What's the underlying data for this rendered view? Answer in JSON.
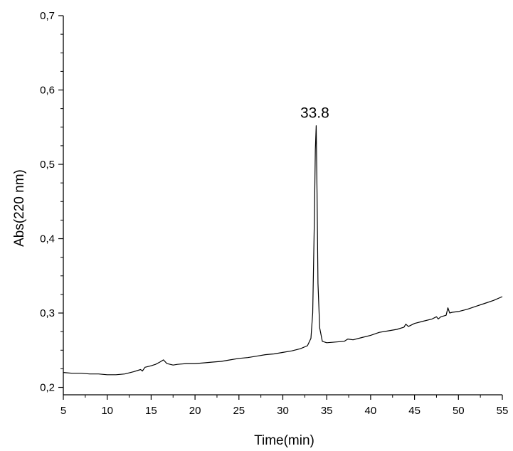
{
  "chart_data": {
    "type": "line",
    "xlabel": "Time(min)",
    "ylabel": "Abs(220 nm)",
    "xlim": [
      5,
      55
    ],
    "ylim": [
      0.19,
      0.7
    ],
    "x_ticks": [
      5,
      10,
      15,
      20,
      25,
      30,
      35,
      40,
      45,
      50,
      55
    ],
    "x_tick_labels": [
      "5",
      "10",
      "15",
      "20",
      "25",
      "30",
      "35",
      "40",
      "45",
      "50",
      "55"
    ],
    "y_ticks": [
      0.2,
      0.3,
      0.4,
      0.5,
      0.6,
      0.7
    ],
    "y_tick_labels": [
      "0,2",
      "0,3",
      "0,4",
      "0,5",
      "0,6",
      "0,7"
    ],
    "grid": false,
    "annotations": [
      {
        "text": "33.8",
        "x": 33.8,
        "y": 0.552
      }
    ],
    "series": [
      {
        "x": [
          5,
          6,
          7,
          8,
          9,
          10,
          11,
          12,
          13,
          13.8,
          14.0,
          14.3,
          15,
          15.5,
          16.0,
          16.4,
          16.8,
          17.5,
          18,
          19,
          20,
          21,
          22,
          23,
          24,
          25,
          26,
          27,
          28,
          29,
          30,
          31,
          32,
          32.8,
          33.2,
          33.4,
          33.6,
          33.7,
          33.8,
          33.9,
          34.0,
          34.2,
          34.5,
          35,
          36,
          37,
          37.4,
          38,
          39,
          40,
          41,
          42,
          43,
          43.8,
          44.0,
          44.3,
          45,
          46,
          47,
          47.5,
          47.7,
          48,
          48.6,
          48.8,
          49.0,
          49.3,
          50,
          51,
          52,
          53,
          54,
          55
        ],
        "y": [
          0.22,
          0.219,
          0.219,
          0.218,
          0.218,
          0.217,
          0.217,
          0.218,
          0.221,
          0.224,
          0.222,
          0.227,
          0.229,
          0.231,
          0.234,
          0.237,
          0.232,
          0.23,
          0.231,
          0.232,
          0.232,
          0.233,
          0.234,
          0.235,
          0.237,
          0.239,
          0.24,
          0.242,
          0.244,
          0.245,
          0.247,
          0.249,
          0.252,
          0.256,
          0.266,
          0.3,
          0.43,
          0.52,
          0.552,
          0.46,
          0.34,
          0.28,
          0.262,
          0.26,
          0.261,
          0.262,
          0.265,
          0.264,
          0.267,
          0.27,
          0.274,
          0.276,
          0.278,
          0.281,
          0.285,
          0.282,
          0.286,
          0.289,
          0.292,
          0.295,
          0.292,
          0.295,
          0.297,
          0.307,
          0.3,
          0.301,
          0.302,
          0.305,
          0.309,
          0.313,
          0.317,
          0.322
        ]
      }
    ]
  }
}
